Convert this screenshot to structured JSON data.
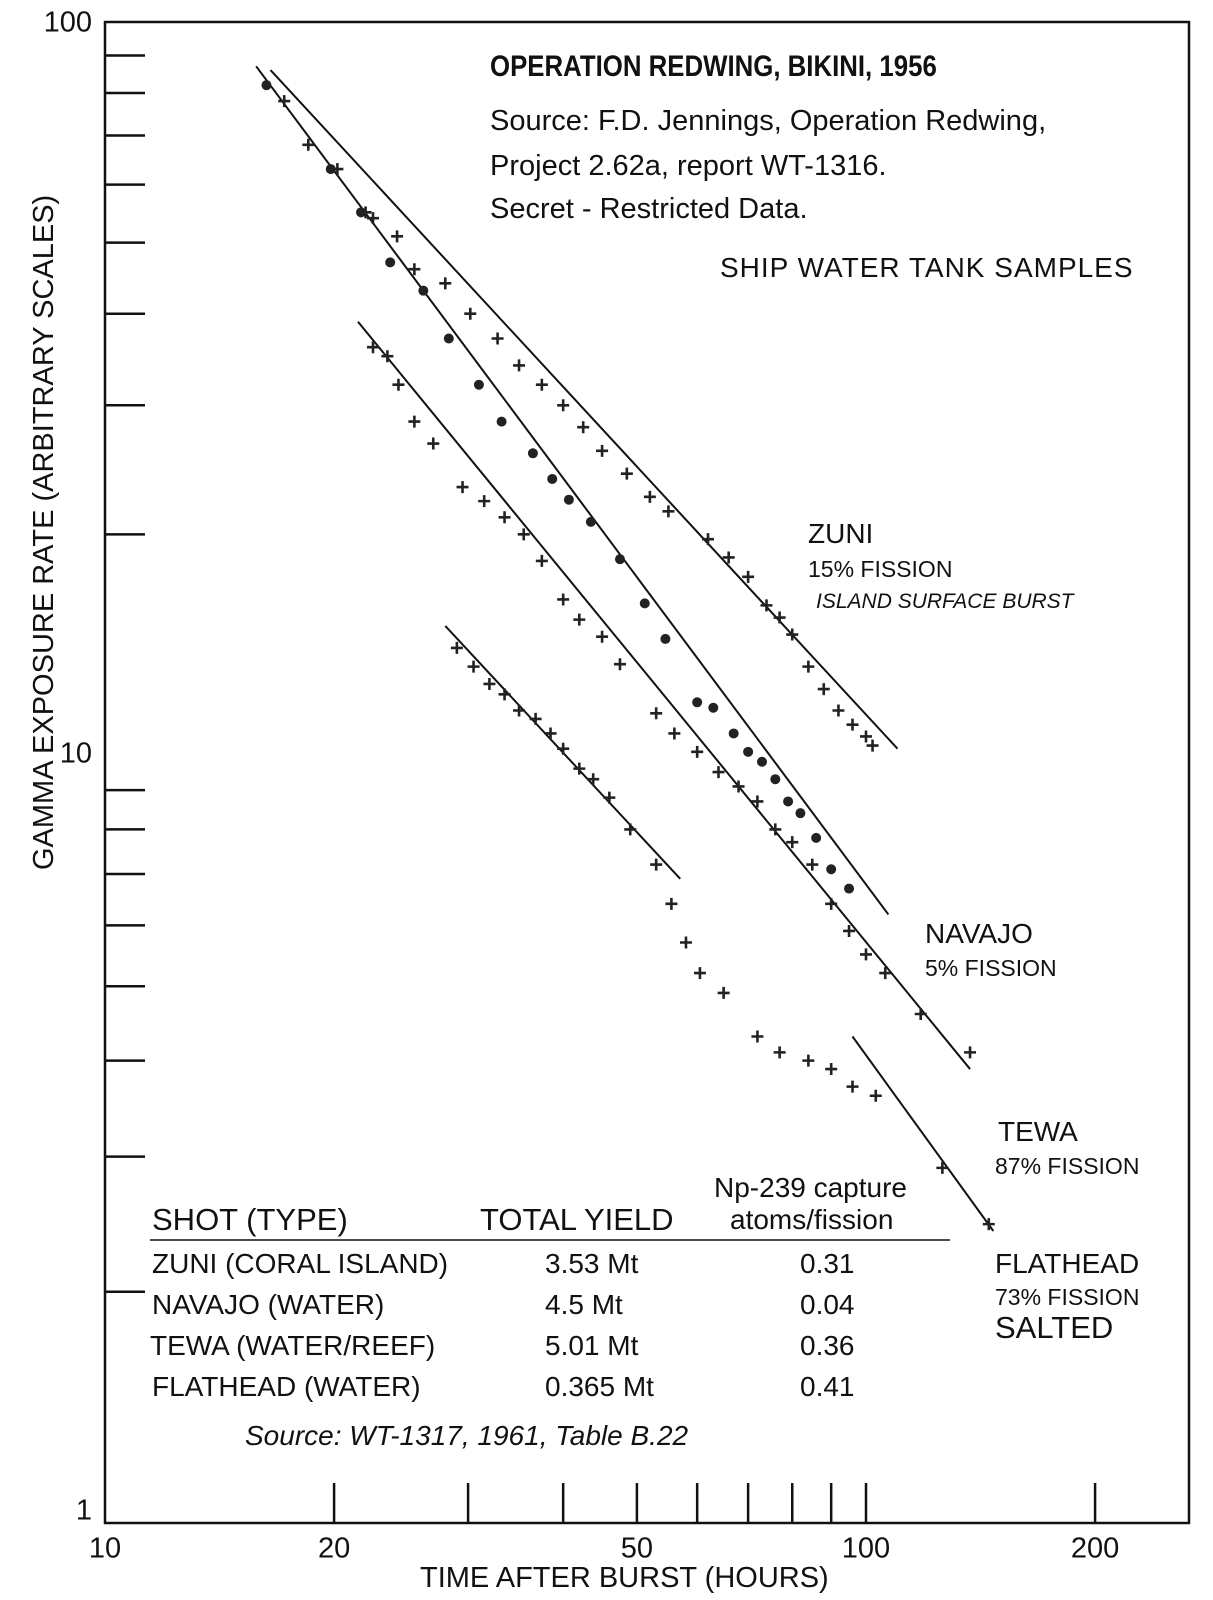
{
  "chart_data": {
    "type": "scatter",
    "title": "OPERATION REDWING, BIKINI, 1956",
    "source_lines": [
      "Source: F.D. Jennings, Operation Redwing,",
      "Project 2.62a, report WT-1316.",
      "Secret - Restricted Data."
    ],
    "subtitle": "SHIP WATER TANK SAMPLES",
    "xlabel": "TIME AFTER BURST (HOURS)",
    "ylabel": "GAMMA EXPOSURE RATE  (ARBITRARY SCALES)",
    "xscale": "log",
    "yscale": "log",
    "xlim": [
      10,
      230
    ],
    "ylim": [
      1,
      100
    ],
    "x_tick_labels": [
      "10",
      "20",
      "50",
      "100",
      "200"
    ],
    "y_tick_labels": [
      "1",
      "10",
      "100"
    ],
    "grid": false,
    "series": [
      {
        "name": "ZUNI",
        "labels": [
          "15% FISSION",
          "ISLAND SURFACE BURST"
        ],
        "fit_line": [
          [
            16.5,
            86
          ],
          [
            110,
            10.2
          ]
        ],
        "points": [
          [
            17.2,
            78
          ],
          [
            18.5,
            68
          ],
          [
            20.2,
            63
          ],
          [
            22,
            55
          ],
          [
            22.5,
            54
          ],
          [
            24.2,
            51
          ],
          [
            25.5,
            46
          ],
          [
            28,
            44
          ],
          [
            30.2,
            40
          ],
          [
            32.8,
            37
          ],
          [
            35,
            34
          ],
          [
            37.5,
            32
          ],
          [
            40,
            30
          ],
          [
            42.5,
            28
          ],
          [
            45,
            26
          ],
          [
            48.5,
            24.2
          ],
          [
            52,
            22.5
          ],
          [
            55,
            21.5
          ],
          [
            62,
            19.7
          ],
          [
            66,
            18.6
          ],
          [
            70,
            17.5
          ],
          [
            74,
            16
          ],
          [
            77,
            15.4
          ],
          [
            80,
            14.6
          ],
          [
            84,
            13.2
          ],
          [
            88,
            12.3
          ],
          [
            92,
            11.5
          ],
          [
            96,
            11
          ],
          [
            100,
            10.6
          ],
          [
            102,
            10.3
          ]
        ]
      },
      {
        "name": "NAVAJO",
        "labels": [
          "5% FISSION"
        ],
        "fit_line": [
          [
            15.8,
            87
          ],
          [
            107,
            6.2
          ]
        ],
        "points": [
          [
            16.3,
            82
          ],
          [
            19.8,
            63
          ],
          [
            21.7,
            55
          ],
          [
            23.7,
            47
          ],
          [
            26.2,
            43
          ],
          [
            28.3,
            37
          ],
          [
            31,
            32
          ],
          [
            33.2,
            28.5
          ],
          [
            36.5,
            25.8
          ],
          [
            38.7,
            23.8
          ],
          [
            40.7,
            22.3
          ],
          [
            43.5,
            20.8
          ],
          [
            47.5,
            18.5
          ],
          [
            51.2,
            16.1
          ],
          [
            54.5,
            14.4
          ],
          [
            60,
            11.8
          ],
          [
            63,
            11.6
          ],
          [
            67,
            10.7
          ],
          [
            70,
            10.1
          ],
          [
            73,
            9.8
          ],
          [
            76,
            9.3
          ],
          [
            79,
            8.7
          ],
          [
            82,
            8.4
          ],
          [
            86,
            7.8
          ],
          [
            90,
            7.1
          ],
          [
            95,
            6.7
          ]
        ]
      },
      {
        "name": "TEWA",
        "labels": [
          "87% FISSION"
        ],
        "fit_line": [
          [
            21.5,
            39
          ],
          [
            137,
            3.9
          ]
        ],
        "points": [
          [
            22.5,
            36
          ],
          [
            23.5,
            35
          ],
          [
            24.3,
            32
          ],
          [
            25.5,
            28.5
          ],
          [
            27,
            26.6
          ],
          [
            29.5,
            23.2
          ],
          [
            31.5,
            22.2
          ],
          [
            33.5,
            21.1
          ],
          [
            35.5,
            20
          ],
          [
            37.5,
            18.4
          ],
          [
            40,
            16.3
          ],
          [
            42,
            15.3
          ],
          [
            45,
            14.5
          ],
          [
            47.5,
            13.3
          ],
          [
            53,
            11.4
          ],
          [
            56,
            10.7
          ],
          [
            60,
            10.1
          ],
          [
            64,
            9.5
          ],
          [
            68,
            9.1
          ],
          [
            72,
            8.7
          ],
          [
            76,
            8
          ],
          [
            80,
            7.7
          ],
          [
            85,
            7.2
          ],
          [
            90,
            6.4
          ],
          [
            95,
            5.9
          ],
          [
            100,
            5.5
          ],
          [
            106,
            5.2
          ],
          [
            118,
            4.6
          ],
          [
            137,
            4.1
          ]
        ]
      },
      {
        "name": "FLATHEAD",
        "labels": [
          "73% FISSION",
          "SALTED"
        ],
        "fit_line_early": [
          [
            28,
            15
          ],
          [
            57,
            6.9
          ]
        ],
        "fit_line_late": [
          [
            96,
            4.3
          ],
          [
            147,
            2.4
          ]
        ],
        "points": [
          [
            29,
            14
          ],
          [
            30.5,
            13.2
          ],
          [
            32,
            12.5
          ],
          [
            33.5,
            12.1
          ],
          [
            35,
            11.5
          ],
          [
            36.8,
            11.2
          ],
          [
            38.5,
            10.7
          ],
          [
            40,
            10.2
          ],
          [
            42,
            9.6
          ],
          [
            43.8,
            9.3
          ],
          [
            46,
            8.8
          ],
          [
            49,
            8
          ],
          [
            53,
            7.2
          ],
          [
            55.5,
            6.4
          ],
          [
            58,
            5.7
          ],
          [
            60.5,
            5.2
          ],
          [
            65,
            4.9
          ],
          [
            72,
            4.3
          ],
          [
            77,
            4.1
          ],
          [
            84,
            4
          ],
          [
            90,
            3.9
          ],
          [
            96,
            3.7
          ],
          [
            103,
            3.6
          ],
          [
            126,
            2.9
          ],
          [
            145,
            2.45
          ]
        ]
      }
    ],
    "table": {
      "headers": [
        "SHOT (TYPE)",
        "TOTAL YIELD",
        "Np-239 capture",
        "atoms/fission"
      ],
      "rows": [
        {
          "shot": "ZUNI (CORAL ISLAND)",
          "yield": "3.53 Mt",
          "np": "0.31"
        },
        {
          "shot": "NAVAJO (WATER)",
          "yield": "4.5 Mt",
          "np": "0.04"
        },
        {
          "shot": "TEWA  (WATER/REEF)",
          "yield": "5.01 Mt",
          "np": "0.36"
        },
        {
          "shot": "FLATHEAD (WATER)",
          "yield": "0.365 Mt",
          "np": "0.41"
        }
      ],
      "footnote": "Source: WT-1317, 1961, Table B.22"
    }
  }
}
